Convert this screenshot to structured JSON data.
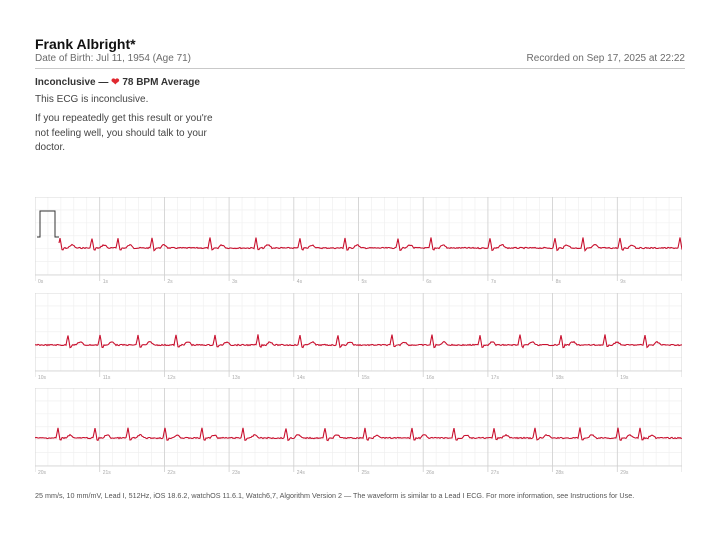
{
  "patient": {
    "name": "Frank Albright*",
    "dob": "Date of Birth: Jul 11, 1954 (Age 71)",
    "recorded": "Recorded on Sep 17, 2025 at 22:22"
  },
  "result": {
    "classification": "Inconclusive —",
    "heart_icon": "heart-icon",
    "average": "78 BPM Average",
    "summary": "This ECG is inconclusive.",
    "advice": "If you repeatedly get this result or you're not feeling well, you should talk to your doctor."
  },
  "strips": [
    {
      "labels": [
        "0s",
        "1s",
        "2s",
        "3s",
        "4s",
        "5s",
        "6s",
        "7s",
        "8s",
        "9s"
      ]
    },
    {
      "labels": [
        "10s",
        "11s",
        "12s",
        "13s",
        "14s",
        "15s",
        "16s",
        "17s",
        "18s",
        "19s"
      ]
    },
    {
      "labels": [
        "20s",
        "21s",
        "22s",
        "23s",
        "24s",
        "25s",
        "26s",
        "27s",
        "28s",
        "29s"
      ]
    }
  ],
  "footer": "25 mm/s, 10 mm/mV, Lead I, 512Hz, iOS 18.6.2, watchOS 11.6.1, Watch6,7, Algorithm Version 2 — The waveform is similar to a Lead I ECG. For more information, see Instructions for Use.",
  "colors": {
    "trace": "#c8102e",
    "grid_minor": "#eeeeee",
    "grid_major": "#cfcfcf"
  }
}
